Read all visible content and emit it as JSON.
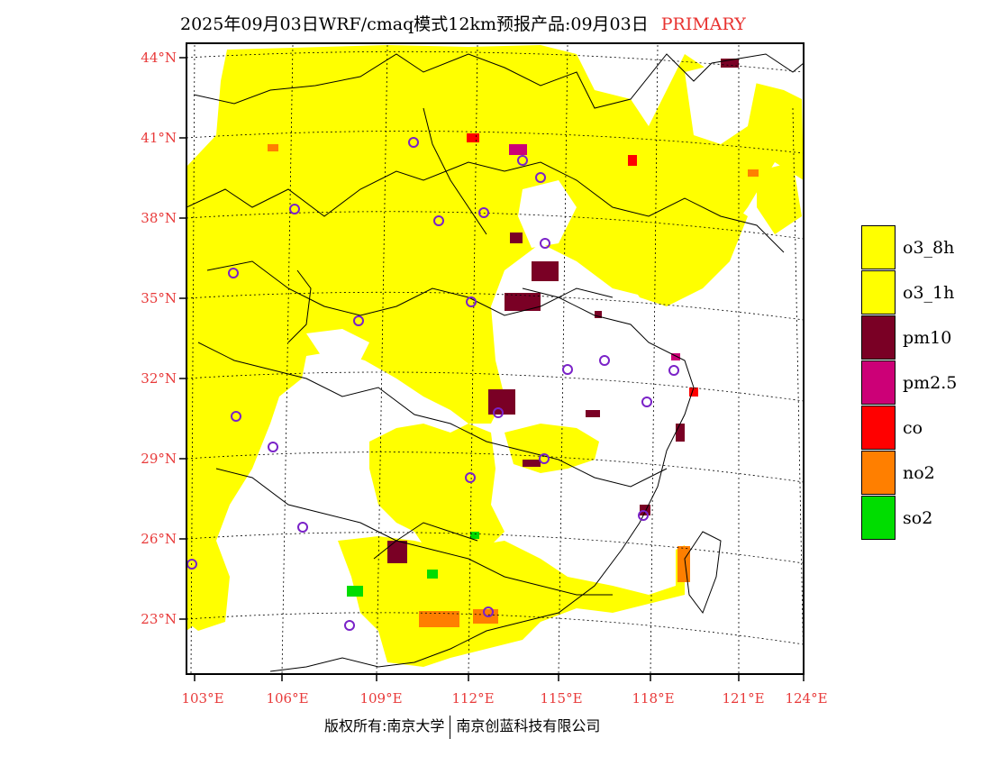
{
  "header": {
    "title": "2025年09月03日WRF/cmaq模式12km预报产品:09月03日",
    "tag": "PRIMARY"
  },
  "latitude_labels": [
    "44°N",
    "41°N",
    "38°N",
    "35°N",
    "32°N",
    "29°N",
    "26°N",
    "23°N"
  ],
  "longitude_labels": [
    "103°E",
    "106°E",
    "109°E",
    "112°E",
    "115°E",
    "118°E",
    "121°E",
    "124°E"
  ],
  "legend": {
    "items": [
      {
        "label": "o3_8h",
        "color": "#ffff00"
      },
      {
        "label": "o3_1h",
        "color": "#ffff00"
      },
      {
        "label": "pm10",
        "color": "#7a0025"
      },
      {
        "label": "pm2.5",
        "color": "#cc0077"
      },
      {
        "label": "co",
        "color": "#ff0000"
      },
      {
        "label": "no2",
        "color": "#ff7f00"
      },
      {
        "label": "so2",
        "color": "#00dd00"
      }
    ]
  },
  "footer": {
    "copyright": "版权所有:南京大学",
    "company": "南京创蓝科技有限公司"
  }
}
